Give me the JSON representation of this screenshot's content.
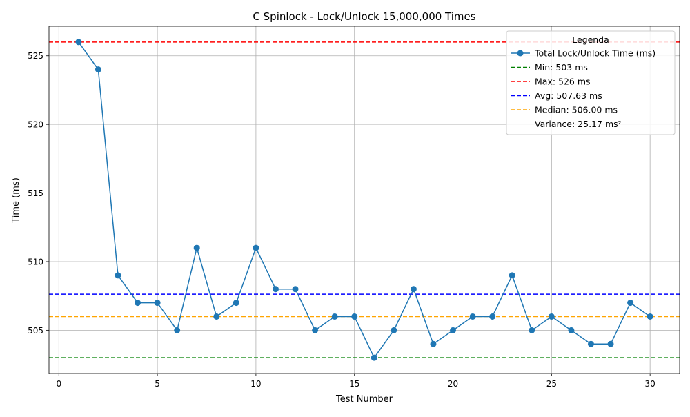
{
  "chart_data": {
    "type": "line",
    "title": "C Spinlock - Lock/Unlock 15,000,000 Times",
    "xlabel": "Test Number",
    "ylabel": "Time (ms)",
    "xlim": [
      -0.5,
      31.5
    ],
    "ylim": [
      501.85,
      527.15
    ],
    "xticks": [
      0,
      5,
      10,
      15,
      20,
      25,
      30
    ],
    "yticks": [
      505,
      510,
      515,
      520,
      525
    ],
    "grid": true,
    "x": [
      1,
      2,
      3,
      4,
      5,
      6,
      7,
      8,
      9,
      10,
      11,
      12,
      13,
      14,
      15,
      16,
      17,
      18,
      19,
      20,
      21,
      22,
      23,
      24,
      25,
      26,
      27,
      28,
      29,
      30
    ],
    "series": [
      {
        "name": "Total Lock/Unlock Time (ms)",
        "color": "#1f77b4",
        "values": [
          526,
          524,
          509,
          507,
          507,
          505,
          511,
          506,
          507,
          511,
          508,
          508,
          505,
          506,
          506,
          503,
          505,
          508,
          504,
          505,
          506,
          506,
          509,
          505,
          506,
          505,
          504,
          504,
          507,
          506
        ]
      }
    ],
    "reference_lines": [
      {
        "label": "Min: 503 ms",
        "value": 503,
        "color": "#008000"
      },
      {
        "label": "Max: 526 ms",
        "value": 526,
        "color": "#ff0000"
      },
      {
        "label": "Avg: 507.63 ms",
        "value": 507.63,
        "color": "#0000ff"
      },
      {
        "label": "Median: 506.00 ms",
        "value": 506.0,
        "color": "#ffa500"
      }
    ],
    "legend": {
      "title": "Legenda",
      "position": "top-right",
      "extra_text": "Variance: 25.17 ms²"
    }
  }
}
